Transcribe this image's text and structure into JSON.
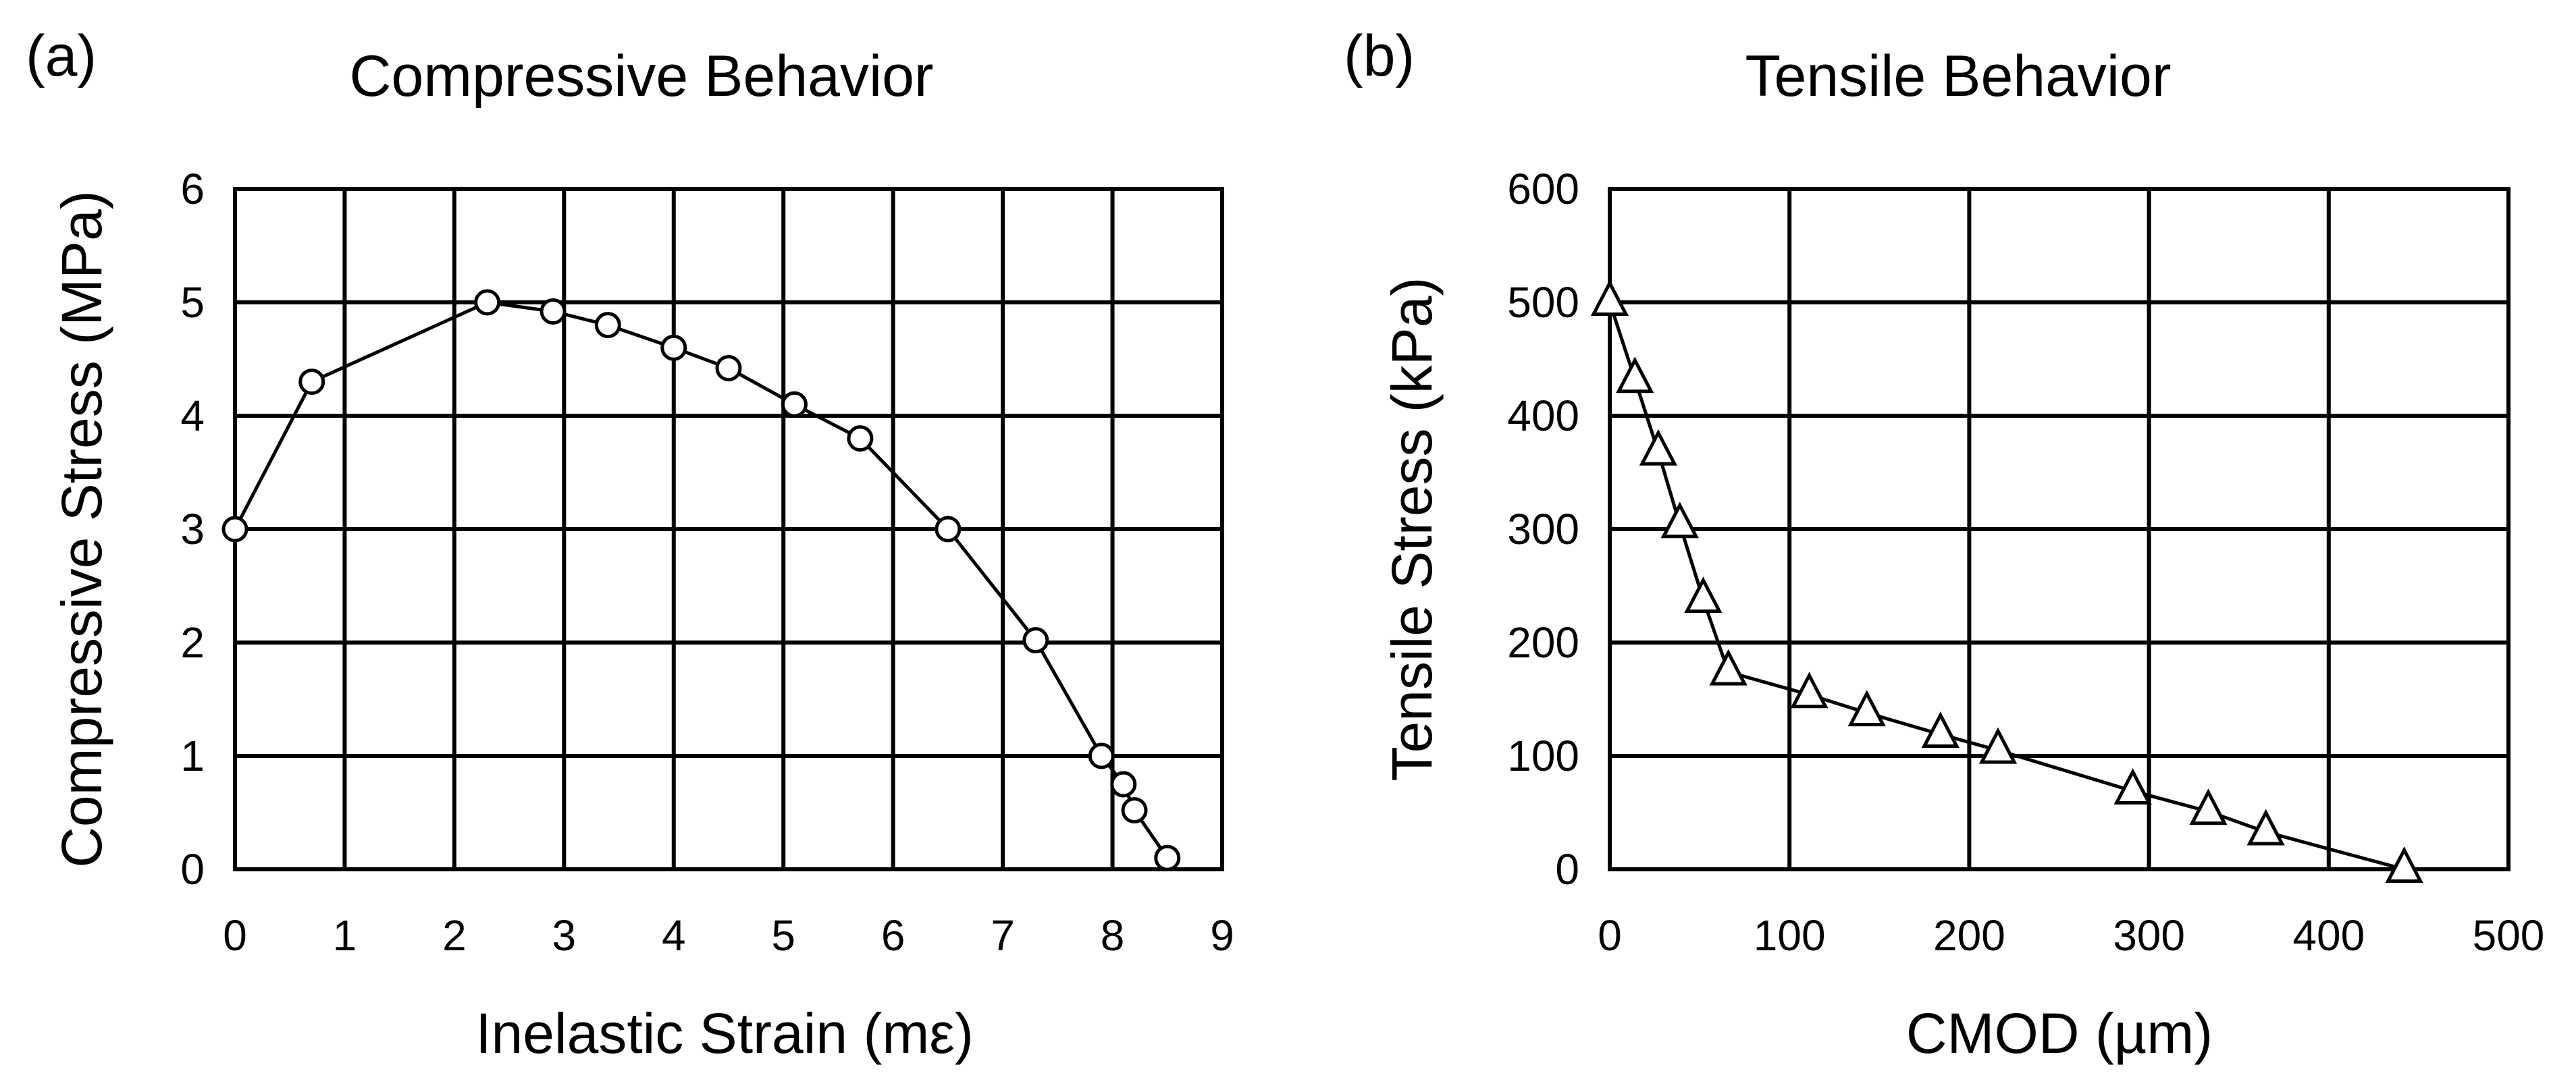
{
  "chart_data": [
    {
      "panel_label": "(a)",
      "type": "line",
      "title": "Compressive Behavior",
      "xlabel": "Inelastic Strain (mε)",
      "ylabel": "Compressive Stress (MPa)",
      "xlim": [
        0,
        9
      ],
      "ylim": [
        0,
        6
      ],
      "xticks": [
        0,
        1,
        2,
        3,
        4,
        5,
        6,
        7,
        8,
        9
      ],
      "yticks": [
        0,
        1,
        2,
        3,
        4,
        5,
        6
      ],
      "grid": true,
      "marker": "circle",
      "series": [
        {
          "name": "Compressive",
          "x": [
            0,
            0.7,
            2.3,
            2.9,
            3.4,
            4.0,
            4.5,
            5.1,
            5.7,
            6.5,
            7.3,
            7.9,
            8.1,
            8.2,
            8.5
          ],
          "y": [
            3.0,
            4.3,
            5.0,
            4.92,
            4.8,
            4.6,
            4.42,
            4.1,
            3.8,
            3.0,
            2.02,
            1.0,
            0.75,
            0.52,
            0.1
          ]
        }
      ]
    },
    {
      "panel_label": "(b)",
      "type": "line",
      "title": "Tensile Behavior",
      "xlabel": "CMOD (µm)",
      "ylabel": "Tensile Stress (kPa)",
      "xlim": [
        0,
        500
      ],
      "ylim": [
        0,
        600
      ],
      "xticks": [
        0,
        100,
        200,
        300,
        400,
        500
      ],
      "yticks": [
        0,
        100,
        200,
        300,
        400,
        500,
        600
      ],
      "grid": true,
      "marker": "triangle",
      "series": [
        {
          "name": "Tensile",
          "x": [
            0,
            14,
            27,
            39,
            52,
            66,
            111,
            143,
            184,
            216,
            291,
            333,
            365,
            442
          ],
          "y": [
            500,
            432,
            368,
            304,
            238,
            174,
            154,
            138,
            119,
            105,
            69,
            51,
            33,
            0
          ]
        }
      ]
    }
  ]
}
